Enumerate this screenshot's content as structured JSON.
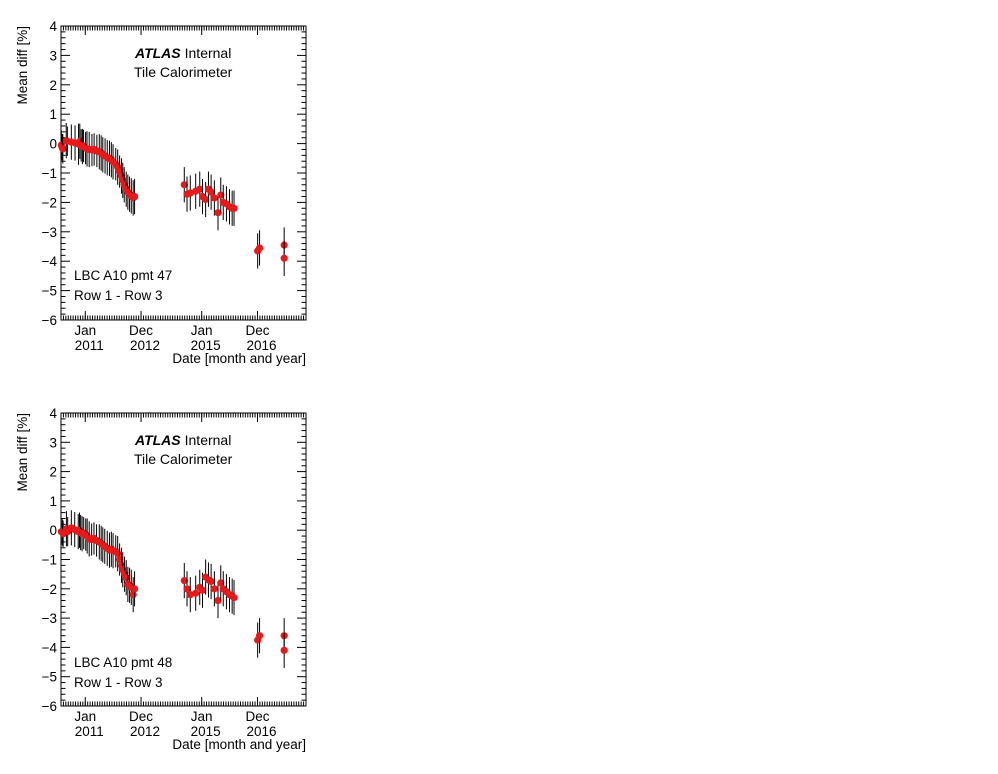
{
  "chart_data": [
    {
      "type": "scatter",
      "ylabel": "Mean diff [%]",
      "xlabel": "Date [month and year]",
      "ylim": [
        -6,
        4
      ],
      "y_ticks": [
        "4",
        "3",
        "2",
        "1",
        "0",
        "−1",
        "−2",
        "−3",
        "−4",
        "−5",
        "−6"
      ],
      "x_tick_labels": [
        {
          "month": "Jan",
          "year": "2011"
        },
        {
          "month": "Dec",
          "year": "2012"
        },
        {
          "month": "Jan",
          "year": "2015"
        },
        {
          "month": "Dec",
          "year": "2016"
        }
      ],
      "experiment": "ATLAS",
      "experiment_status": "Internal",
      "detector": "Tile Calorimeter",
      "annotation_line1": "LBC A10 pmt 47",
      "annotation_line2": "Row 1 - Row 3",
      "marker_color": "#e8191a",
      "error_color": "#000000",
      "grid": false,
      "x_axis": "date",
      "xlim": [
        "2010-03",
        "2018-08"
      ],
      "points": [
        {
          "x": "2010-03-05",
          "y": -0.05,
          "err": 0.5
        },
        {
          "x": "2010-03-14",
          "y": -0.12,
          "err": 0.45
        },
        {
          "x": "2010-03-24",
          "y": -0.18,
          "err": 0.5
        },
        {
          "x": "2010-05-06",
          "y": 0.1,
          "err": 0.6
        },
        {
          "x": "2010-05-20",
          "y": 0.08,
          "err": 0.5
        },
        {
          "x": "2010-07-09",
          "y": 0.05,
          "err": 0.6
        },
        {
          "x": "2010-08-25",
          "y": 0.02,
          "err": 0.6
        },
        {
          "x": "2010-10-08",
          "y": -0.02,
          "err": 0.7
        },
        {
          "x": "2010-10-24",
          "y": 0.08,
          "err": 0.6
        },
        {
          "x": "2010-11-10",
          "y": -0.06,
          "err": 0.55
        },
        {
          "x": "2010-11-26",
          "y": -0.1,
          "err": 0.6
        },
        {
          "x": "2010-12-10",
          "y": -0.08,
          "err": 0.55
        },
        {
          "x": "2011-01-05",
          "y": -0.15,
          "err": 0.55
        },
        {
          "x": "2011-01-23",
          "y": -0.18,
          "err": 0.6
        },
        {
          "x": "2011-02-20",
          "y": -0.2,
          "err": 0.6
        },
        {
          "x": "2011-03-24",
          "y": -0.22,
          "err": 0.55
        },
        {
          "x": "2011-04-21",
          "y": -0.2,
          "err": 0.55
        },
        {
          "x": "2011-05-25",
          "y": -0.25,
          "err": 0.55
        },
        {
          "x": "2011-06-25",
          "y": -0.28,
          "err": 0.6
        },
        {
          "x": "2011-07-18",
          "y": -0.32,
          "err": 0.6
        },
        {
          "x": "2011-08-08",
          "y": -0.38,
          "err": 0.6
        },
        {
          "x": "2011-09-06",
          "y": -0.42,
          "err": 0.6
        },
        {
          "x": "2011-10-03",
          "y": -0.48,
          "err": 0.6
        },
        {
          "x": "2011-10-31",
          "y": -0.5,
          "err": 0.6
        },
        {
          "x": "2011-11-24",
          "y": -0.55,
          "err": 0.6
        },
        {
          "x": "2011-12-15",
          "y": -0.62,
          "err": 0.6
        },
        {
          "x": "2012-01-18",
          "y": -0.7,
          "err": 0.55
        },
        {
          "x": "2012-02-12",
          "y": -0.8,
          "err": 0.6
        },
        {
          "x": "2012-03-06",
          "y": -0.95,
          "err": 0.55
        },
        {
          "x": "2012-03-30",
          "y": -1.1,
          "err": 0.6
        },
        {
          "x": "2012-04-15",
          "y": -1.25,
          "err": 0.6
        },
        {
          "x": "2012-05-03",
          "y": -1.4,
          "err": 0.6
        },
        {
          "x": "2012-05-28",
          "y": -1.55,
          "err": 0.6
        },
        {
          "x": "2012-06-18",
          "y": -1.65,
          "err": 0.6
        },
        {
          "x": "2012-07-09",
          "y": -1.72,
          "err": 0.6
        },
        {
          "x": "2012-07-31",
          "y": -1.78,
          "err": 0.6
        },
        {
          "x": "2012-08-24",
          "y": -1.85,
          "err": 0.6
        },
        {
          "x": "2012-09-11",
          "y": -1.8,
          "err": 0.6
        },
        {
          "x": "2014-05-26",
          "y": -1.4,
          "err": 0.6
        },
        {
          "x": "2014-06-30",
          "y": -1.72,
          "err": 0.6
        },
        {
          "x": "2014-08-10",
          "y": -1.68,
          "err": 0.6
        },
        {
          "x": "2014-10-17",
          "y": -1.62,
          "err": 0.6
        },
        {
          "x": "2014-12-07",
          "y": -1.55,
          "err": 0.6
        },
        {
          "x": "2015-01-11",
          "y": -1.8,
          "err": 0.6
        },
        {
          "x": "2015-02-20",
          "y": -1.9,
          "err": 0.6
        },
        {
          "x": "2015-03-25",
          "y": -1.55,
          "err": 0.6
        },
        {
          "x": "2015-04-28",
          "y": -1.65,
          "err": 0.6
        },
        {
          "x": "2015-06-08",
          "y": -1.85,
          "err": 0.6
        },
        {
          "x": "2015-07-23",
          "y": -2.35,
          "err": 0.6
        },
        {
          "x": "2015-08-27",
          "y": -1.75,
          "err": 0.6
        },
        {
          "x": "2015-09-28",
          "y": -2.0,
          "err": 0.6
        },
        {
          "x": "2015-11-07",
          "y": -2.05,
          "err": 0.6
        },
        {
          "x": "2015-12-15",
          "y": -2.15,
          "err": 0.6
        },
        {
          "x": "2016-01-18",
          "y": -2.2,
          "err": 0.6
        },
        {
          "x": "2016-02-11",
          "y": -2.2,
          "err": 0.6
        },
        {
          "x": "2016-12-03",
          "y": -3.65,
          "err": 0.6
        },
        {
          "x": "2016-12-27",
          "y": -3.55,
          "err": 0.6
        },
        {
          "x": "2017-11-01",
          "y": -3.45,
          "err": 0.6
        },
        {
          "x": "2017-11-01",
          "y": -3.9,
          "err": 0.6
        }
      ]
    },
    {
      "type": "scatter",
      "ylabel": "Mean diff [%]",
      "xlabel": "Date [month and year]",
      "ylim": [
        -6,
        4
      ],
      "y_ticks": [
        "4",
        "3",
        "2",
        "1",
        "0",
        "−1",
        "−2",
        "−3",
        "−4",
        "−5",
        "−6"
      ],
      "x_tick_labels": [
        {
          "month": "Jan",
          "year": "2011"
        },
        {
          "month": "Dec",
          "year": "2012"
        },
        {
          "month": "Jan",
          "year": "2015"
        },
        {
          "month": "Dec",
          "year": "2016"
        }
      ],
      "experiment": "ATLAS",
      "experiment_status": "Internal",
      "detector": "Tile Calorimeter",
      "annotation_line1": "LBC A10 pmt 48",
      "annotation_line2": "Row 1 - Row 3",
      "marker_color": "#e8191a",
      "error_color": "#000000",
      "grid": false,
      "x_axis": "date",
      "xlim": [
        "2010-03",
        "2018-08"
      ],
      "points": [
        {
          "x": "2010-03-05",
          "y": -0.05,
          "err": 0.45
        },
        {
          "x": "2010-03-19",
          "y": -0.08,
          "err": 0.45
        },
        {
          "x": "2010-03-28",
          "y": -0.12,
          "err": 0.45
        },
        {
          "x": "2010-05-08",
          "y": 0.05,
          "err": 0.6
        },
        {
          "x": "2010-05-24",
          "y": -0.05,
          "err": 0.5
        },
        {
          "x": "2010-07-09",
          "y": 0.08,
          "err": 0.6
        },
        {
          "x": "2010-08-21",
          "y": 0.02,
          "err": 0.6
        },
        {
          "x": "2010-10-04",
          "y": -0.05,
          "err": 0.6
        },
        {
          "x": "2010-10-20",
          "y": 0.0,
          "err": 0.6
        },
        {
          "x": "2010-11-04",
          "y": -0.08,
          "err": 0.6
        },
        {
          "x": "2010-11-22",
          "y": -0.12,
          "err": 0.6
        },
        {
          "x": "2010-12-12",
          "y": -0.1,
          "err": 0.55
        },
        {
          "x": "2011-01-07",
          "y": -0.15,
          "err": 0.55
        },
        {
          "x": "2011-01-25",
          "y": -0.2,
          "err": 0.6
        },
        {
          "x": "2011-02-20",
          "y": -0.3,
          "err": 0.6
        },
        {
          "x": "2011-03-20",
          "y": -0.32,
          "err": 0.55
        },
        {
          "x": "2011-04-19",
          "y": -0.28,
          "err": 0.55
        },
        {
          "x": "2011-05-21",
          "y": -0.35,
          "err": 0.55
        },
        {
          "x": "2011-06-25",
          "y": -0.4,
          "err": 0.6
        },
        {
          "x": "2011-07-18",
          "y": -0.45,
          "err": 0.6
        },
        {
          "x": "2011-08-08",
          "y": -0.5,
          "err": 0.6
        },
        {
          "x": "2011-09-02",
          "y": -0.55,
          "err": 0.6
        },
        {
          "x": "2011-10-03",
          "y": -0.62,
          "err": 0.6
        },
        {
          "x": "2011-10-31",
          "y": -0.68,
          "err": 0.6
        },
        {
          "x": "2011-11-24",
          "y": -0.65,
          "err": 0.6
        },
        {
          "x": "2011-12-15",
          "y": -0.7,
          "err": 0.6
        },
        {
          "x": "2012-01-18",
          "y": -0.72,
          "err": 0.55
        },
        {
          "x": "2012-02-12",
          "y": -0.8,
          "err": 0.6
        },
        {
          "x": "2012-03-06",
          "y": -1.0,
          "err": 0.55
        },
        {
          "x": "2012-03-30",
          "y": -1.2,
          "err": 0.6
        },
        {
          "x": "2012-04-15",
          "y": -1.35,
          "err": 0.6
        },
        {
          "x": "2012-05-07",
          "y": -1.5,
          "err": 0.6
        },
        {
          "x": "2012-05-28",
          "y": -1.62,
          "err": 0.6
        },
        {
          "x": "2012-06-18",
          "y": -1.85,
          "err": 0.6
        },
        {
          "x": "2012-07-09",
          "y": -1.88,
          "err": 0.6
        },
        {
          "x": "2012-07-31",
          "y": -1.95,
          "err": 0.6
        },
        {
          "x": "2012-08-24",
          "y": -2.2,
          "err": 0.6
        },
        {
          "x": "2012-09-11",
          "y": -2.0,
          "err": 0.6
        },
        {
          "x": "2014-05-26",
          "y": -1.72,
          "err": 0.6
        },
        {
          "x": "2014-06-30",
          "y": -2.0,
          "err": 0.6
        },
        {
          "x": "2014-08-10",
          "y": -2.2,
          "err": 0.6
        },
        {
          "x": "2014-10-17",
          "y": -2.15,
          "err": 0.6
        },
        {
          "x": "2014-12-07",
          "y": -1.95,
          "err": 0.6
        },
        {
          "x": "2015-01-11",
          "y": -2.05,
          "err": 0.6
        },
        {
          "x": "2015-02-20",
          "y": -1.6,
          "err": 0.6
        },
        {
          "x": "2015-03-25",
          "y": -1.7,
          "err": 0.6
        },
        {
          "x": "2015-04-28",
          "y": -1.75,
          "err": 0.6
        },
        {
          "x": "2015-06-08",
          "y": -2.0,
          "err": 0.6
        },
        {
          "x": "2015-07-23",
          "y": -2.4,
          "err": 0.6
        },
        {
          "x": "2015-08-27",
          "y": -1.8,
          "err": 0.6
        },
        {
          "x": "2015-09-28",
          "y": -2.0,
          "err": 0.6
        },
        {
          "x": "2015-11-07",
          "y": -2.1,
          "err": 0.6
        },
        {
          "x": "2015-12-15",
          "y": -2.2,
          "err": 0.6
        },
        {
          "x": "2016-01-18",
          "y": -2.25,
          "err": 0.6
        },
        {
          "x": "2016-02-11",
          "y": -2.3,
          "err": 0.6
        },
        {
          "x": "2016-12-03",
          "y": -3.75,
          "err": 0.6
        },
        {
          "x": "2016-12-27",
          "y": -3.6,
          "err": 0.6
        },
        {
          "x": "2017-11-01",
          "y": -3.6,
          "err": 0.6
        },
        {
          "x": "2017-11-01",
          "y": -4.1,
          "err": 0.6
        }
      ]
    }
  ]
}
